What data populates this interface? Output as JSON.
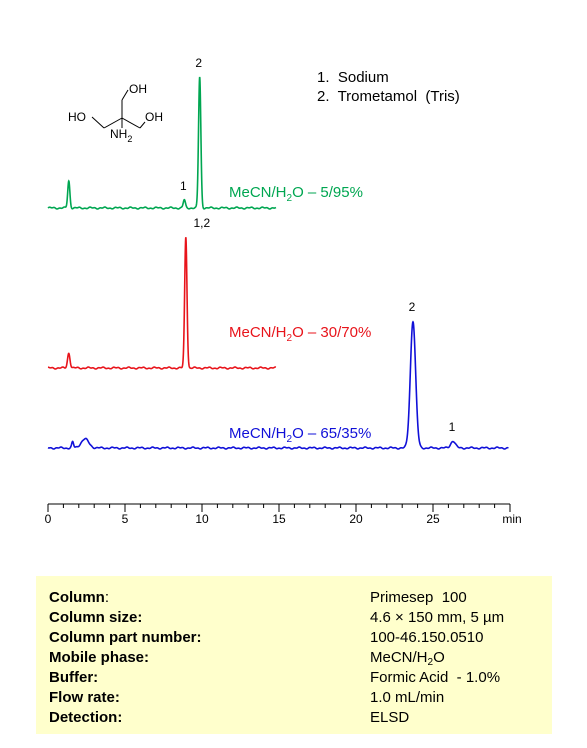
{
  "chart_data": {
    "type": "line",
    "x_axis": {
      "min": 0,
      "max": 30,
      "ticks": [
        0,
        5,
        10,
        15,
        20,
        25
      ],
      "tick_labels": [
        "0",
        "5",
        "10",
        "15",
        "20",
        "25"
      ],
      "unit_label": "min"
    },
    "legend": [
      "1.  Sodium",
      "2.  Trometamol  (Tris)"
    ],
    "traces": [
      {
        "label_pre": "MeCN/H",
        "label_sub": "2",
        "label_post": "O – 5/95%",
        "color": "#00a651",
        "x_end": 14.8,
        "peaks": [
          {
            "t": 1.35,
            "h": 27,
            "w": 0.07
          },
          {
            "t": 8.85,
            "h": 8,
            "w": 0.07
          },
          {
            "t": 9.85,
            "h": 131,
            "w": 0.075
          }
        ],
        "peak_labels": [
          {
            "text": "1",
            "t": 8.85,
            "h": 8
          },
          {
            "text": "2",
            "t": 9.85,
            "h": 131
          }
        ]
      },
      {
        "label_pre": "MeCN/H",
        "label_sub": "2",
        "label_post": "O – 30/70%",
        "color": "#e8141b",
        "x_end": 14.8,
        "peaks": [
          {
            "t": 1.35,
            "h": 15,
            "w": 0.08
          },
          {
            "t": 8.95,
            "h": 131,
            "w": 0.075
          }
        ],
        "peak_labels": [
          {
            "text": "1,2",
            "t": 8.95,
            "h": 131
          }
        ]
      },
      {
        "label_pre": "MeCN/H",
        "label_sub": "2",
        "label_post": "O – 65/35%",
        "color": "#1010d8",
        "x_end": 29.9,
        "peaks": [
          {
            "t": 1.6,
            "h": 6,
            "w": 0.06
          },
          {
            "t": 2.4,
            "h": 9,
            "w": 0.25
          },
          {
            "t": 23.7,
            "h": 127,
            "w": 0.17
          },
          {
            "t": 26.3,
            "h": 7,
            "w": 0.15
          }
        ],
        "peak_labels": [
          {
            "text": "2",
            "t": 23.7,
            "h": 127
          },
          {
            "text": "1",
            "t": 26.3,
            "h": 7
          }
        ]
      }
    ]
  },
  "structure": {
    "labels": [
      "OH",
      "HO",
      "OH",
      "NH",
      "2"
    ]
  },
  "info": [
    {
      "key": "Column",
      "key_suffix": ":",
      "value_pre": "Primesep  100",
      "value_sub": "",
      "value_post": ""
    },
    {
      "key": "Column size:",
      "key_suffix": "",
      "value_pre": "4.6 × 150 mm, 5 µm",
      "value_sub": "",
      "value_post": ""
    },
    {
      "key": "Column part number:",
      "key_suffix": "",
      "value_pre": "100-46.150.0510",
      "value_sub": "",
      "value_post": ""
    },
    {
      "key": "Mobile phase:",
      "key_suffix": "",
      "value_pre": "MeCN/H",
      "value_sub": "2",
      "value_post": "O"
    },
    {
      "key": "Buffer:",
      "key_suffix": "",
      "value_pre": "Formic Acid  - 1.0%",
      "value_sub": "",
      "value_post": ""
    },
    {
      "key": "Flow rate:",
      "key_suffix": "",
      "value_pre": "1.0 mL/min",
      "value_sub": "",
      "value_post": ""
    },
    {
      "key": "Detection:",
      "key_suffix": "",
      "value_pre": "ELSD",
      "value_sub": "",
      "value_post": ""
    }
  ]
}
